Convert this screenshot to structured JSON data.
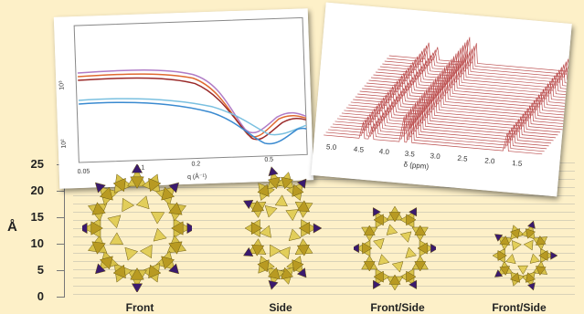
{
  "scale": {
    "unit": "Å",
    "ticks": [
      "0",
      "5",
      "10",
      "15",
      "20",
      "25"
    ]
  },
  "labels": [
    "Front",
    "Side",
    "Front/Side",
    "Front/Side"
  ],
  "saxs": {
    "xticks": [
      "0.05",
      "0.1",
      "0.2",
      "0.5"
    ],
    "xlabel": "q (Å⁻¹)",
    "yticks": [
      "10³",
      "10²"
    ]
  },
  "nmr": {
    "xticks": [
      "5.0",
      "4.5",
      "4.0",
      "3.5",
      "3.0",
      "2.5",
      "2.0",
      "1.5"
    ],
    "xlabel": "δ (ppm)"
  },
  "colors": {
    "polyhedra_yellow": "#d8c24a",
    "polyhedra_purple": "#3a1a6e",
    "nmr_red": "#b03030",
    "background": "#fdf0c8"
  }
}
